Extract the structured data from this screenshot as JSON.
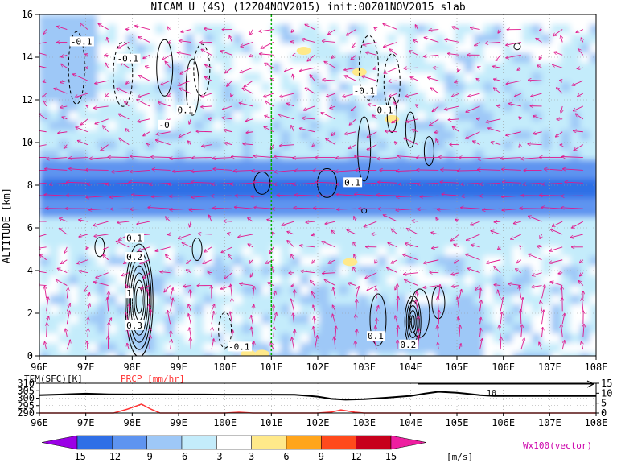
{
  "title": "NICAM U (4S) (12Z04NOV2015) init:00Z01NOV2015 slab",
  "colors": {
    "shading": [
      "#9b00e6",
      "#2f6fe6",
      "#5e94f0",
      "#9ec8f7",
      "#c4ecfb",
      "#ffffff",
      "#ffe98a",
      "#ffa51c",
      "#ff4a1c",
      "#c7001c",
      "#ee1ea0"
    ],
    "vector": "#e0188c",
    "contour": "#000000",
    "temperature_line": "#000000",
    "precip_line": "#ff3333",
    "guide_line": "#00b000"
  },
  "chart_data": [
    {
      "type": "heatmap",
      "title": "NICAM U (4S) (12Z04NOV2015) init:00Z01NOV2015 slab",
      "xlabel": "",
      "ylabel": "ALTITUDE [km]",
      "x_ticks": [
        "96E",
        "97E",
        "98E",
        "99E",
        "100E",
        "101E",
        "102E",
        "103E",
        "104E",
        "105E",
        "106E",
        "107E",
        "108E"
      ],
      "y_ticks": [
        "0",
        "2",
        "4",
        "6",
        "8",
        "10",
        "12",
        "14",
        "16"
      ],
      "xlim": [
        96,
        108
      ],
      "ylim": [
        0,
        16
      ],
      "vertical_guide_lon": 101,
      "shading_levels": [
        -15,
        -12,
        -9,
        -6,
        -3,
        3,
        6,
        9,
        12,
        15
      ],
      "shading_units": "[m/s]",
      "vector_label": "Wx100(vector)",
      "bands": [
        {
          "z_range": [
            7.6,
            8.6
          ],
          "u": -13
        },
        {
          "z_range": [
            6.8,
            9.6
          ],
          "u": -10
        },
        {
          "z_range": [
            5.5,
            11.0
          ],
          "u": -5
        },
        {
          "z_range": [
            0.5,
            2.6
          ],
          "x_range": [
            102.0,
            105.2
          ],
          "u": -8
        }
      ],
      "contour_labels": [
        {
          "text": "-0.1",
          "lon": 96.9,
          "z": 14.7
        },
        {
          "text": "-0.1",
          "lon": 97.9,
          "z": 13.9
        },
        {
          "text": "0.1",
          "lon": 99.2,
          "z": 11.5
        },
        {
          "text": "-0",
          "lon": 98.8,
          "z": 10.8
        },
        {
          "text": "-0.1",
          "lon": 103.0,
          "z": 12.4
        },
        {
          "text": "0.1",
          "lon": 103.5,
          "z": 11.5
        },
        {
          "text": "0.1",
          "lon": 102.8,
          "z": 8.1
        },
        {
          "text": "0.1",
          "lon": 98.1,
          "z": 5.5
        },
        {
          "text": "0.2",
          "lon": 98.1,
          "z": 4.6
        },
        {
          "text": "-0.1",
          "lon": 100.3,
          "z": 0.4
        },
        {
          "text": "0.1",
          "lon": 103.3,
          "z": 0.9
        },
        {
          "text": "0.2",
          "lon": 104.0,
          "z": 0.5
        },
        {
          "text": "1",
          "lon": 98.1,
          "z": 2.9
        },
        {
          "text": "0.3",
          "lon": 98.1,
          "z": 1.4
        }
      ]
    },
    {
      "type": "line",
      "left_label": "TEM(SFC)[K]",
      "right_label": "PRCP [mm/hr]",
      "x_ticks": [
        "96E",
        "97E",
        "98E",
        "99E",
        "100E",
        "101E",
        "102E",
        "103E",
        "104E",
        "105E",
        "106E",
        "107E",
        "108E"
      ],
      "xlim": [
        96,
        108
      ],
      "left_ticks": [
        "290",
        "295",
        "300",
        "305",
        "310"
      ],
      "left_range": [
        290,
        310
      ],
      "right_ticks": [
        "0",
        "5",
        "10",
        "15"
      ],
      "right_range": [
        0,
        15
      ],
      "series": [
        {
          "name": "TEM(SFC)[K]",
          "x": [
            96,
            96.5,
            97,
            97.5,
            98,
            98.5,
            99,
            99.5,
            100,
            100.5,
            101,
            101.5,
            102,
            102.3,
            102.6,
            103,
            103.5,
            104,
            104.3,
            104.6,
            105,
            105.2,
            105.5,
            105.8,
            106,
            106.5,
            107,
            107.5,
            108
          ],
          "y": [
            302,
            302.5,
            303,
            302.6,
            302.5,
            302.6,
            302.5,
            302.5,
            302.4,
            302.4,
            302.4,
            302.3,
            301,
            299.5,
            299,
            299.3,
            300.3,
            301.5,
            303,
            304.3,
            303.6,
            303,
            302,
            301.5,
            301.5,
            301.5,
            301.5,
            301.5,
            301.5
          ]
        },
        {
          "name": "PRCP [mm/hr]",
          "x": [
            96,
            97.6,
            97.9,
            98.2,
            98.4,
            98.6,
            99,
            100,
            100.3,
            100.6,
            101,
            102,
            102.3,
            102.5,
            102.8,
            103,
            104,
            105,
            106,
            107,
            108
          ],
          "y": [
            0,
            0,
            2,
            4.5,
            2,
            0,
            0,
            0,
            0.4,
            0,
            0,
            0,
            0.5,
            1.6,
            0.4,
            0,
            0,
            0,
            0,
            0,
            0
          ]
        }
      ],
      "annotations": [
        "10"
      ]
    }
  ],
  "colorbar": {
    "ticks": [
      "-15",
      "-12",
      "-9",
      "-6",
      "-3",
      "3",
      "6",
      "9",
      "12",
      "15"
    ],
    "units": "[m/s]",
    "vector_label": "Wx100(vector)"
  }
}
